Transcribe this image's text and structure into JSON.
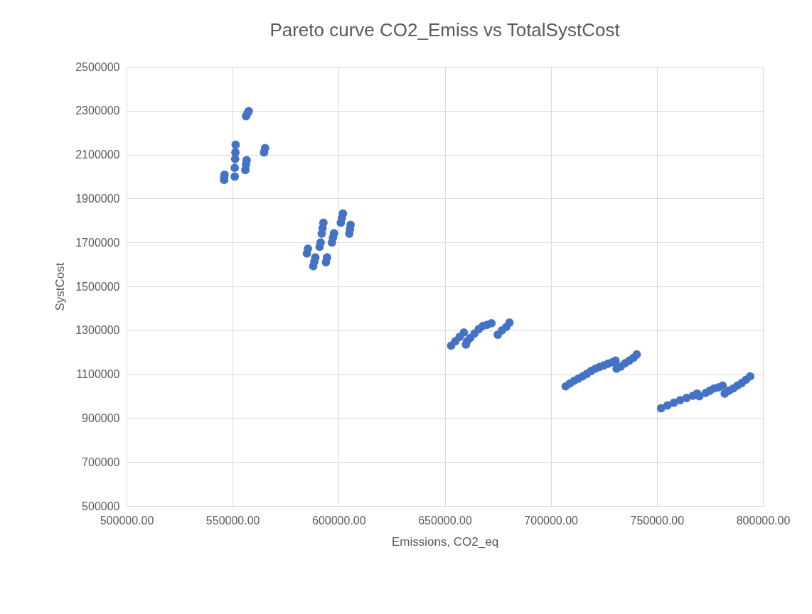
{
  "chart_data": {
    "type": "scatter",
    "title": "Pareto curve CO2_Emiss vs TotalSystCost",
    "xlabel": "Emissions, CO2_eq",
    "ylabel": "SystCost",
    "xlim": [
      500000,
      800000
    ],
    "xticks": [
      {
        "value": 500000,
        "label": "500000.00"
      },
      {
        "value": 550000,
        "label": "550000.00"
      },
      {
        "value": 600000,
        "label": "600000.00"
      },
      {
        "value": 650000,
        "label": "650000.00"
      },
      {
        "value": 700000,
        "label": "700000.00"
      },
      {
        "value": 750000,
        "label": "750000.00"
      },
      {
        "value": 800000,
        "label": "800000.00"
      }
    ],
    "ylim": [
      500000,
      2500000
    ],
    "yticks": [
      500000,
      700000,
      900000,
      1100000,
      1300000,
      1500000,
      1700000,
      1900000,
      2100000,
      2300000,
      2500000
    ],
    "grid": true,
    "marker": "circle",
    "series": [
      {
        "color": "#4472c4",
        "x": [
          556300,
          557000,
          557600,
          546000,
          546000,
          546200,
          551000,
          551000,
          551200,
          551300,
          551400,
          556000,
          556300,
          556600,
          564800,
          565300,
          585000,
          585500,
          588000,
          588500,
          589000,
          591000,
          591500,
          592000,
          592400,
          592800,
          594000,
          594500,
          596800,
          597300,
          597800,
          601000,
          601500,
          602000,
          605000,
          605300,
          605600,
          653000,
          655000,
          657000,
          659000,
          660000,
          660500,
          662000,
          664000,
          666000,
          668000,
          670000,
          672000,
          675000,
          677000,
          679000,
          680500,
          707000,
          709000,
          711000,
          713000,
          715000,
          717000,
          719000,
          721000,
          723000,
          725000,
          727000,
          729000,
          730500,
          731000,
          733000,
          735000,
          737000,
          739000,
          740500,
          752000,
          755000,
          758000,
          761000,
          764000,
          767000,
          769000,
          770000,
          773000,
          775000,
          777000,
          779000,
          781000,
          782000,
          784000,
          786000,
          788000,
          790000,
          792000,
          794000
        ],
        "values": [
          2275000,
          2288000,
          2298000,
          1985000,
          1998000,
          2008000,
          2000000,
          2040000,
          2080000,
          2110000,
          2145000,
          2030000,
          2055000,
          2075000,
          2110000,
          2130000,
          1650000,
          1672000,
          1592000,
          1612000,
          1632000,
          1680000,
          1700000,
          1740000,
          1765000,
          1790000,
          1610000,
          1632000,
          1700000,
          1722000,
          1742000,
          1790000,
          1812000,
          1832000,
          1740000,
          1760000,
          1780000,
          1230000,
          1250000,
          1270000,
          1290000,
          1235000,
          1250000,
          1265000,
          1285000,
          1305000,
          1320000,
          1325000,
          1332000,
          1280000,
          1300000,
          1315000,
          1335000,
          1045000,
          1058000,
          1070000,
          1080000,
          1090000,
          1102000,
          1115000,
          1125000,
          1133000,
          1140000,
          1148000,
          1155000,
          1162000,
          1125000,
          1135000,
          1150000,
          1162000,
          1175000,
          1190000,
          945000,
          958000,
          970000,
          982000,
          992000,
          1002000,
          1012000,
          1000000,
          1015000,
          1025000,
          1035000,
          1040000,
          1048000,
          1012000,
          1025000,
          1035000,
          1048000,
          1060000,
          1075000,
          1090000
        ]
      }
    ]
  }
}
